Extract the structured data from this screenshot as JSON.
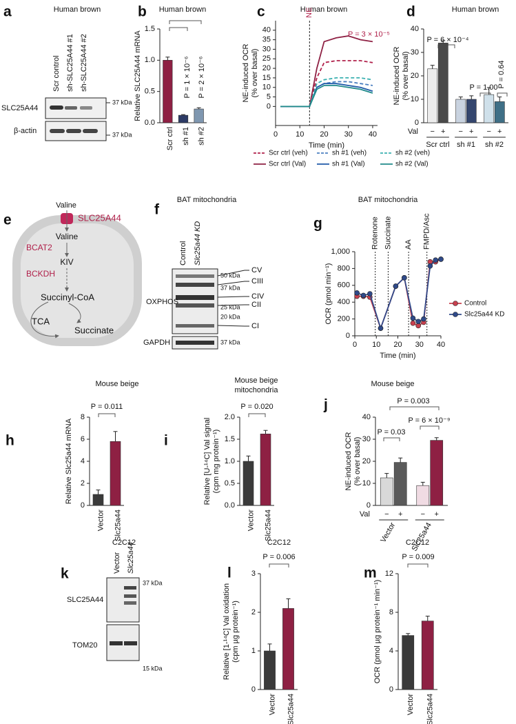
{
  "blots": [
    {
      "panel": "a",
      "title": "Human brown",
      "lanes": [
        "Scr control",
        "sh-SLC25A44 #1",
        "sh-SLC25A44 #2"
      ],
      "rows": [
        "SLC25A44",
        "β-actin"
      ],
      "markers": [
        "37 kDa",
        "37 kDa"
      ]
    },
    {
      "panel": "f",
      "title": "BAT mitochondria",
      "lanes": [
        "Control",
        "Slc25a44 KD"
      ],
      "rows": [
        "OXPHOS",
        "GAPDH"
      ],
      "markers": [
        "50 kDa",
        "37 kDa",
        "25 kDa",
        "20 kDa",
        "37 kDa"
      ],
      "complexes": [
        "CV",
        "CIII",
        "CIV",
        "CII",
        "CI"
      ]
    },
    {
      "panel": "k",
      "title": "C2C12",
      "lanes": [
        "Vector",
        "Slc25a44"
      ],
      "rows": [
        "SLC25A44",
        "TOM20"
      ],
      "markers": [
        "37 kDa",
        "15 kDa"
      ]
    }
  ],
  "diagram": {
    "panel": "e",
    "nodes": [
      "Valine",
      "SLC25A44",
      "Valine",
      "BCAT2",
      "KIV",
      "BCKDH",
      "Succinyl-CoA",
      "TCA",
      "Succinate"
    ]
  },
  "chart_data": [
    {
      "type": "bar",
      "panel": "b",
      "title": "Human brown",
      "ylabel": [
        "Relative SLC25A44 mRNA"
      ],
      "categories": [
        "Scr ctrl",
        "sh #1",
        "sh #2"
      ],
      "values": [
        1.0,
        0.12,
        0.22
      ],
      "errors": [
        0.05,
        0.01,
        0.02
      ],
      "colors": [
        "#8e2043",
        "#2d3b66",
        "#7f97b0"
      ],
      "ylim": [
        0,
        1.5
      ],
      "yticks": [
        {
          "value": 0,
          "label": "0.0"
        },
        0.5,
        {
          "value": 1,
          "label": "1.0"
        },
        1.5
      ],
      "annotations": [
        "P = 1 × 10⁻⁶",
        "P = 2 × 10⁻⁶"
      ]
    },
    {
      "type": "line",
      "panel": "c",
      "title": "Human brown",
      "ylabel": [
        "NE-induced OCR",
        "(% over basal)"
      ],
      "xlabel": "Time (min)",
      "x": [
        2,
        5,
        8,
        11,
        14,
        17,
        20,
        25,
        30,
        35,
        40
      ],
      "series": [
        {
          "name": "Scr ctrl (veh)",
          "color": "#b0204a",
          "dash": true,
          "values": [
            0,
            0,
            0,
            0,
            0,
            15,
            23,
            24,
            24,
            24,
            23
          ]
        },
        {
          "name": "Scr ctrl (Val)",
          "color": "#8e2043",
          "dash": false,
          "values": [
            0,
            0,
            0,
            0,
            0,
            20,
            34,
            36,
            37,
            35,
            34
          ]
        },
        {
          "name": "sh #1 (veh)",
          "color": "#4a7fc0",
          "dash": true,
          "values": [
            0,
            0,
            0,
            0,
            0,
            10,
            12,
            13,
            13,
            12,
            11
          ]
        },
        {
          "name": "sh #1 (Val)",
          "color": "#1f5aa8",
          "dash": false,
          "values": [
            0,
            0,
            0,
            0,
            0,
            10,
            12,
            12,
            11,
            10,
            8
          ]
        },
        {
          "name": "sh #2 (veh)",
          "color": "#3ab0b0",
          "dash": true,
          "values": [
            0,
            0,
            0,
            0,
            0,
            12,
            14,
            15,
            15,
            15,
            14
          ]
        },
        {
          "name": "sh #2 (Val)",
          "color": "#1f8a8a",
          "dash": false,
          "values": [
            0,
            0,
            0,
            0,
            0,
            9,
            11,
            11,
            10,
            9,
            7
          ]
        }
      ],
      "xlim": [
        0,
        42
      ],
      "xticks": [
        0,
        10,
        20,
        30,
        40
      ],
      "ylim": [
        -10,
        45
      ],
      "yticks": [
        0,
        5,
        10,
        15,
        20,
        25,
        30,
        35,
        40
      ],
      "annotations": [
        "NE",
        "P = 3 × 10⁻⁵"
      ]
    },
    {
      "type": "bar",
      "panel": "d",
      "title": "Human brown",
      "ylabel": [
        "NE-induced OCR",
        "(% over basal)"
      ],
      "group_label": "Val",
      "categories": [
        "Scr ctrl",
        "sh #1",
        "sh #2"
      ],
      "series": [
        {
          "name": "−",
          "values": [
            23,
            10,
            12
          ],
          "errors": [
            1.5,
            1,
            3
          ],
          "colors": [
            "#ececec",
            "#c9d3e0",
            "#cfe0ea"
          ]
        },
        {
          "name": "+",
          "values": [
            34,
            10,
            9
          ],
          "errors": [
            1,
            1.5,
            2
          ],
          "colors": [
            "#4a4a4a",
            "#34466e",
            "#3f6f86"
          ]
        }
      ],
      "ylim": [
        0,
        40
      ],
      "yticks": [
        0,
        10,
        20,
        30,
        40
      ],
      "annotations": [
        "P = 6 × 10⁻⁴",
        "P = 1.00",
        "P = 0.64"
      ]
    },
    {
      "type": "line",
      "panel": "g",
      "title": "BAT mitochondria",
      "ylabel": [
        "OCR (pmol min⁻¹)"
      ],
      "xlabel": "Time (min)",
      "markers": true,
      "x": [
        1,
        4,
        7,
        12,
        19,
        23,
        27,
        29.5,
        32,
        35,
        37.5,
        40
      ],
      "series": [
        {
          "name": "Control",
          "color": "#c8404f",
          "values": [
            470,
            470,
            460,
            90,
            590,
            690,
            150,
            120,
            160,
            880,
            880,
            910
          ]
        },
        {
          "name": "Slc25a44 KD",
          "color": "#2f4a8a",
          "values": [
            510,
            480,
            500,
            90,
            590,
            690,
            210,
            170,
            200,
            830,
            900,
            910
          ]
        }
      ],
      "xlim": [
        0,
        40
      ],
      "xticks": [
        0,
        10,
        20,
        30,
        40
      ],
      "ylim": [
        0,
        1000
      ],
      "yticks": [
        0,
        200,
        400,
        600,
        800,
        {
          "value": 1000,
          "label": "1,000"
        }
      ],
      "annotations": [
        "Rotenone",
        "Succinate",
        "AA",
        "FMPD/Asc"
      ]
    },
    {
      "type": "bar",
      "panel": "h",
      "title": "Mouse beige",
      "ylabel": [
        "Relative Slc25a44 mRNA"
      ],
      "categories": [
        "Vector",
        "Slc25a44"
      ],
      "values": [
        1.0,
        5.8
      ],
      "errors": [
        0.4,
        0.9
      ],
      "colors": [
        "#3a3a3a",
        "#8e2043"
      ],
      "ylim": [
        0,
        8
      ],
      "yticks": [
        0,
        2,
        4,
        6,
        8
      ],
      "annotations": [
        "P = 0.011"
      ]
    },
    {
      "type": "bar",
      "panel": "i",
      "title": [
        "Mouse beige",
        "mitochondria"
      ],
      "ylabel": [
        "Relative [U-¹⁴C] Val signal",
        "(cpm mg protein⁻¹)"
      ],
      "categories": [
        "Vector",
        "Slc25a44"
      ],
      "values": [
        1.0,
        1.62
      ],
      "errors": [
        0.12,
        0.08
      ],
      "colors": [
        "#3a3a3a",
        "#8e2043"
      ],
      "ylim": [
        0,
        2
      ],
      "yticks": [
        {
          "value": 0,
          "label": "0.0"
        },
        0.5,
        {
          "value": 1,
          "label": "1.0"
        },
        1.5,
        {
          "value": 2,
          "label": "2.0"
        }
      ],
      "annotations": [
        "P = 0.020"
      ]
    },
    {
      "type": "bar",
      "panel": "j",
      "title": "Mouse beige",
      "ylabel": [
        "NE-induced OCR",
        "(% over basal)"
      ],
      "group_label": "Val",
      "categories": [
        "Vector",
        "Slc25a44"
      ],
      "series": [
        {
          "name": "−",
          "values": [
            12.5,
            9
          ],
          "errors": [
            2,
            1.5
          ],
          "colors": [
            "#d9d9d9",
            "#f0dbe3"
          ]
        },
        {
          "name": "+",
          "values": [
            19.5,
            29.5
          ],
          "errors": [
            2,
            1.2
          ],
          "colors": [
            "#5a5a5a",
            "#8e2043"
          ]
        }
      ],
      "ylim": [
        0,
        40
      ],
      "yticks": [
        0,
        10,
        20,
        30,
        40
      ],
      "annotations": [
        "P = 0.03",
        "P = 6 × 10⁻⁹",
        "P = 0.003"
      ]
    },
    {
      "type": "bar",
      "panel": "l",
      "title": "C2C12",
      "ylabel": [
        "Relative [1-¹⁴C] Val oxidation",
        "(cpm µg protein⁻¹)"
      ],
      "categories": [
        "Vector",
        "Slc25a44"
      ],
      "values": [
        1.0,
        2.1
      ],
      "errors": [
        0.18,
        0.25
      ],
      "colors": [
        "#3a3a3a",
        "#8e2043"
      ],
      "ylim": [
        0,
        3
      ],
      "yticks": [
        0,
        1,
        2,
        3
      ],
      "annotations": [
        "P = 0.006"
      ]
    },
    {
      "type": "bar",
      "panel": "m",
      "title": "C2C12",
      "ylabel": [
        "OCR (pmol µg protein⁻¹ min⁻¹)"
      ],
      "categories": [
        "Vector",
        "Slc25a44"
      ],
      "values": [
        5.6,
        7.1
      ],
      "errors": [
        0.2,
        0.5
      ],
      "colors": [
        "#3a3a3a",
        "#8e2043"
      ],
      "ylim": [
        0,
        12
      ],
      "yticks": [
        0,
        4,
        8,
        12
      ],
      "annotations": [
        "P = 0.009"
      ]
    }
  ]
}
